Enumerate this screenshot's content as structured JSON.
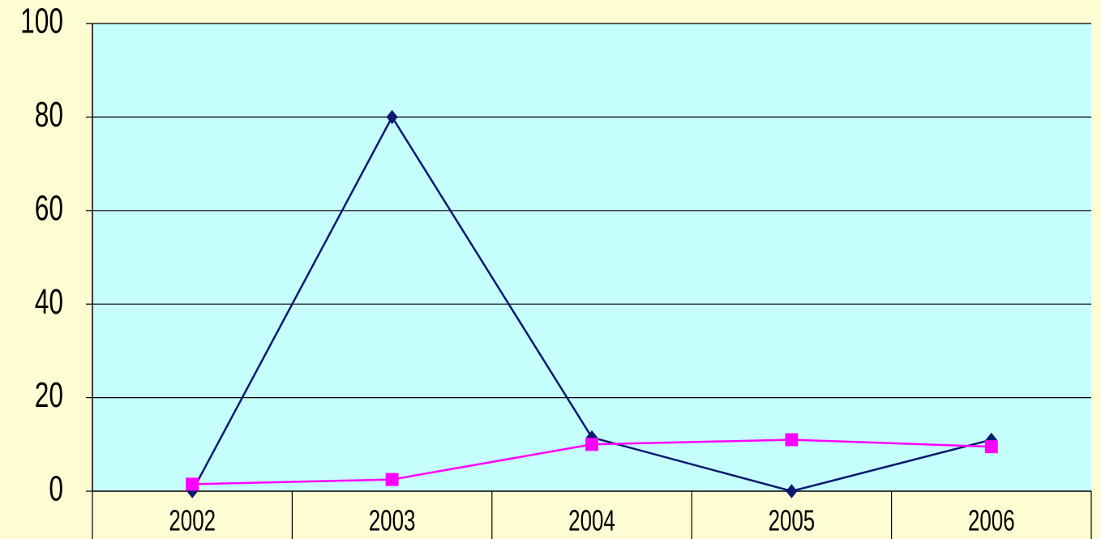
{
  "chart_data": {
    "type": "line",
    "categories": [
      "2002",
      "2003",
      "2004",
      "2005",
      "2006"
    ],
    "series": [
      {
        "values": [
          0,
          80,
          11.5,
          0,
          11
        ],
        "color": "#0b1a6e",
        "marker": "diamond"
      },
      {
        "values": [
          1.5,
          2.5,
          10,
          11,
          9.5
        ],
        "color": "#ff00ff",
        "marker": "square"
      }
    ],
    "ylim": [
      0,
      100
    ],
    "y_ticks": [
      "0",
      "20",
      "40",
      "60",
      "80",
      "100"
    ],
    "grid": true,
    "legend": "none",
    "colors": {
      "background": "#fdfcd2",
      "plot_background": "#c6fdfd"
    }
  }
}
